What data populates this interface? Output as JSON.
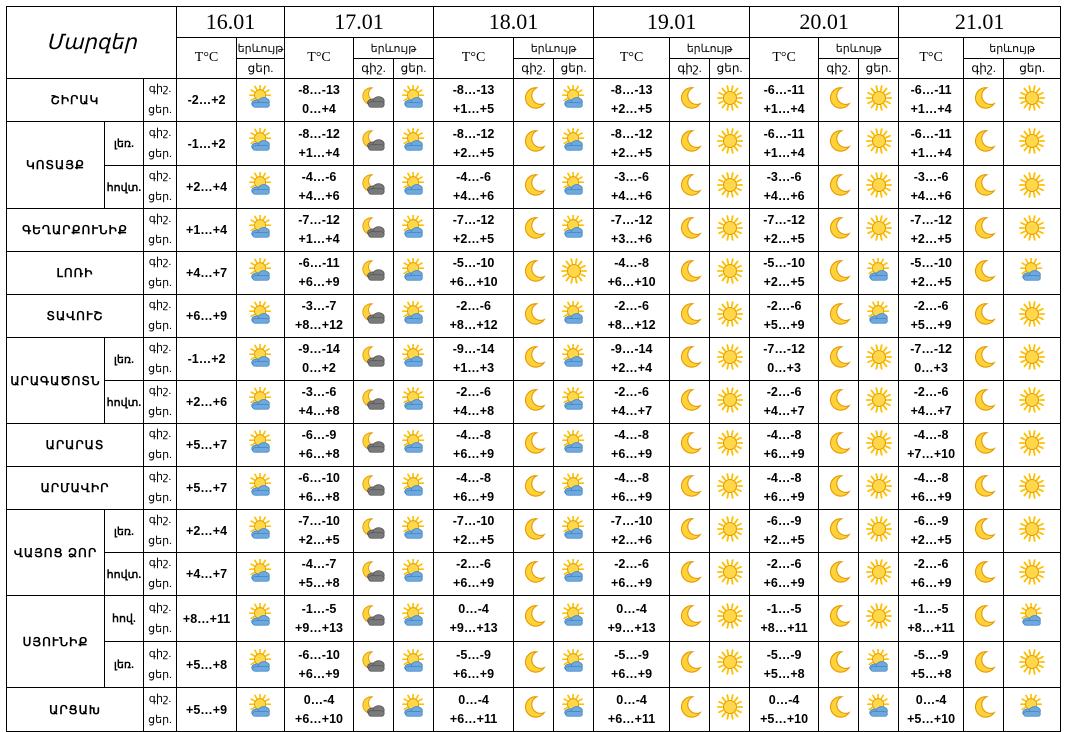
{
  "header": {
    "params_label": "Մարզեր",
    "dates": [
      "16.01",
      "17.01",
      "18.01",
      "19.01",
      "20.01",
      "21.01"
    ],
    "temp_label": "T°C",
    "phenomenon_label": "երևույթ",
    "night_label": "գիշ.",
    "day_label": "ցեր."
  },
  "rows": [
    {
      "region": "ՇԻՐԱԿ",
      "sub": "",
      "first": "-2…+2",
      "icon0": "sun-cloud",
      "days": [
        [
          "-8…-13",
          "0…+4",
          "moon-cloud",
          "sun-cloud"
        ],
        [
          "-8…-13",
          "+1…+5",
          "moon",
          "sun-cloud"
        ],
        [
          "-8…-13",
          "+2…+5",
          "moon",
          "sun"
        ],
        [
          "-6…-11",
          "+1…+4",
          "moon",
          "sun"
        ],
        [
          "-6…-11",
          "+1…+4",
          "moon",
          "sun"
        ]
      ]
    },
    {
      "region": "ԿՈՏԱՅՔ",
      "sub": "լեռ.",
      "first": "-1…+2",
      "icon0": "sun-cloud",
      "days": [
        [
          "-8…-12",
          "+1…+4",
          "moon-cloud",
          "sun-cloud"
        ],
        [
          "-8…-12",
          "+2…+5",
          "moon",
          "sun-cloud"
        ],
        [
          "-8…-12",
          "+2…+5",
          "moon",
          "sun"
        ],
        [
          "-6…-11",
          "+1…+4",
          "moon",
          "sun"
        ],
        [
          "-6…-11",
          "+1…+4",
          "moon",
          "sun"
        ]
      ]
    },
    {
      "region": "",
      "sub": "հովտ.",
      "first": "+2…+4",
      "icon0": "sun-cloud",
      "days": [
        [
          "-4…-6",
          "+4…+6",
          "moon-cloud",
          "sun-cloud"
        ],
        [
          "-4…-6",
          "+4…+6",
          "moon",
          "sun-cloud"
        ],
        [
          "-3…-6",
          "+4…+6",
          "moon",
          "sun"
        ],
        [
          "-3…-6",
          "+4…+6",
          "moon",
          "sun"
        ],
        [
          "-3…-6",
          "+4…+6",
          "moon",
          "sun"
        ]
      ]
    },
    {
      "region": "ԳԵՂԱՐՔՈՒՆԻՔ",
      "sub": "",
      "first": "+1…+4",
      "icon0": "sun-cloud",
      "days": [
        [
          "-7…-12",
          "+1…+4",
          "moon-cloud",
          "sun-cloud"
        ],
        [
          "-7…-12",
          "+2…+5",
          "moon",
          "sun-cloud"
        ],
        [
          "-7…-12",
          "+3…+6",
          "moon",
          "sun"
        ],
        [
          "-7…-12",
          "+2…+5",
          "moon",
          "sun"
        ],
        [
          "-7…-12",
          "+2…+5",
          "moon",
          "sun"
        ]
      ]
    },
    {
      "region": "ԼՈՌԻ",
      "sub": "",
      "first": "+4…+7",
      "icon0": "sun-cloud",
      "days": [
        [
          "-6…-11",
          "+6…+9",
          "moon-cloud",
          "sun-cloud"
        ],
        [
          "-5…-10",
          "+6…+10",
          "moon",
          "sun"
        ],
        [
          "-4…-8",
          "+6…+10",
          "moon",
          "sun"
        ],
        [
          "-5…-10",
          "+2…+5",
          "moon",
          "sun-cloud"
        ],
        [
          "-5…-10",
          "+2…+5",
          "moon",
          "sun-cloud"
        ]
      ]
    },
    {
      "region": "ՏԱՎՈՒՇ",
      "sub": "",
      "first": "+6…+9",
      "icon0": "sun-cloud",
      "days": [
        [
          "-3…-7",
          "+8…+12",
          "moon-cloud",
          "sun-cloud"
        ],
        [
          "-2…-6",
          "+8…+12",
          "moon",
          "sun-cloud"
        ],
        [
          "-2…-6",
          "+8…+12",
          "moon",
          "sun"
        ],
        [
          "-2…-6",
          "+5…+9",
          "moon",
          "sun-cloud"
        ],
        [
          "-2…-6",
          "+5…+9",
          "moon",
          "sun"
        ]
      ]
    },
    {
      "region": "ԱՐԱԳԱԾՈՏՆ",
      "sub": "լեռ.",
      "first": "-1…+2",
      "icon0": "sun-cloud",
      "days": [
        [
          "-9…-14",
          "0…+2",
          "moon-cloud",
          "sun-cloud"
        ],
        [
          "-9…-14",
          "+1…+3",
          "moon",
          "sun-cloud"
        ],
        [
          "-9…-14",
          "+2…+4",
          "moon",
          "sun"
        ],
        [
          "-7…-12",
          "0…+3",
          "moon",
          "sun"
        ],
        [
          "-7…-12",
          "0…+3",
          "moon",
          "sun"
        ]
      ]
    },
    {
      "region": "",
      "sub": "հովտ.",
      "first": "+2…+6",
      "icon0": "sun-cloud",
      "days": [
        [
          "-3…-6",
          "+4…+8",
          "moon-cloud",
          "sun-cloud"
        ],
        [
          "-2…-6",
          "+4…+8",
          "moon",
          "sun-cloud"
        ],
        [
          "-2…-6",
          "+4…+7",
          "moon",
          "sun"
        ],
        [
          "-2…-6",
          "+4…+7",
          "moon",
          "sun"
        ],
        [
          "-2…-6",
          "+4…+7",
          "moon",
          "sun"
        ]
      ]
    },
    {
      "region": "ԱՐԱՐԱՏ",
      "sub": "",
      "first": "+5…+7",
      "icon0": "sun-cloud",
      "days": [
        [
          "-6…-9",
          "+6…+8",
          "moon-cloud",
          "sun-cloud"
        ],
        [
          "-4…-8",
          "+6…+9",
          "moon",
          "sun-cloud"
        ],
        [
          "-4…-8",
          "+6…+9",
          "moon",
          "sun"
        ],
        [
          "-4…-8",
          "+6…+9",
          "moon",
          "sun"
        ],
        [
          "-4…-8",
          "+7…+10",
          "moon",
          "sun"
        ]
      ]
    },
    {
      "region": "ԱՐՄԱՎԻՐ",
      "sub": "",
      "first": "+5…+7",
      "icon0": "sun-cloud",
      "days": [
        [
          "-6…-10",
          "+6…+8",
          "moon-cloud",
          "sun-cloud"
        ],
        [
          "-4…-8",
          "+6…+9",
          "moon",
          "sun-cloud"
        ],
        [
          "-4…-8",
          "+6…+9",
          "moon",
          "sun"
        ],
        [
          "-4…-8",
          "+6…+9",
          "moon",
          "sun"
        ],
        [
          "-4…-8",
          "+6…+9",
          "moon",
          "sun"
        ]
      ]
    },
    {
      "region": "ՎԱՅՈՑ ՁՈՐ",
      "sub": "լեռ.",
      "first": "+2…+4",
      "icon0": "sun-cloud",
      "days": [
        [
          "-7…-10",
          "+2…+5",
          "moon-cloud",
          "sun-cloud"
        ],
        [
          "-7…-10",
          "+2…+5",
          "moon",
          "sun-cloud"
        ],
        [
          "-7…-10",
          "+2…+6",
          "moon",
          "sun"
        ],
        [
          "-6…-9",
          "+2…+5",
          "moon",
          "sun"
        ],
        [
          "-6…-9",
          "+2…+5",
          "moon",
          "sun"
        ]
      ]
    },
    {
      "region": "",
      "sub": "հովտ.",
      "first": "+4…+7",
      "icon0": "sun-cloud",
      "days": [
        [
          "-4…-7",
          "+5…+8",
          "moon-cloud",
          "sun-cloud"
        ],
        [
          "-2…-6",
          "+6…+9",
          "moon",
          "sun-cloud"
        ],
        [
          "-2…-6",
          "+6…+9",
          "moon",
          "sun"
        ],
        [
          "-2…-6",
          "+6…+9",
          "moon",
          "sun"
        ],
        [
          "-2…-6",
          "+6…+9",
          "moon",
          "sun"
        ]
      ]
    },
    {
      "region": "ՍՅՈՒՆԻՔ",
      "sub": "հով.",
      "first": "+8…+11",
      "icon0": "sun-cloud",
      "days": [
        [
          "-1…-5",
          "+9…+13",
          "moon-cloud",
          "sun-cloud"
        ],
        [
          "0…-4",
          "+9…+13",
          "moon",
          "sun-cloud"
        ],
        [
          "0…-4",
          "+9…+13",
          "moon",
          "sun"
        ],
        [
          "-1…-5",
          "+8…+11",
          "moon",
          "sun"
        ],
        [
          "-1…-5",
          "+8…+11",
          "moon",
          "sun-cloud"
        ]
      ]
    },
    {
      "region": "",
      "sub": "լեռ.",
      "first": "+5…+8",
      "icon0": "sun-cloud",
      "days": [
        [
          "-6…-10",
          "+6…+9",
          "moon-cloud",
          "sun-cloud"
        ],
        [
          "-5…-9",
          "+6…+9",
          "moon",
          "sun-cloud"
        ],
        [
          "-5…-9",
          "+6…+9",
          "moon",
          "sun"
        ],
        [
          "-5…-9",
          "+5…+8",
          "moon",
          "sun-cloud"
        ],
        [
          "-5…-9",
          "+5…+8",
          "moon",
          "sun"
        ]
      ]
    },
    {
      "region": "ԱՐՑԱԽ",
      "sub": "",
      "first": "+5…+9",
      "icon0": "sun-cloud",
      "days": [
        [
          "0…-4",
          "+6…+10",
          "moon-cloud",
          "sun-cloud"
        ],
        [
          "0…-4",
          "+6…+11",
          "moon",
          "sun-cloud"
        ],
        [
          "0…-4",
          "+6…+11",
          "moon",
          "sun"
        ],
        [
          "0…-4",
          "+5…+10",
          "moon",
          "sun-cloud"
        ],
        [
          "0…-4",
          "+5…+10",
          "moon",
          "sun-cloud"
        ]
      ]
    }
  ],
  "colors": {
    "sun": "#ffc000",
    "sun_core": "#ffd84a",
    "moon": "#ffd23a",
    "cloud": "#6fa8dc",
    "dark_cloud": "#7a7a7a"
  }
}
